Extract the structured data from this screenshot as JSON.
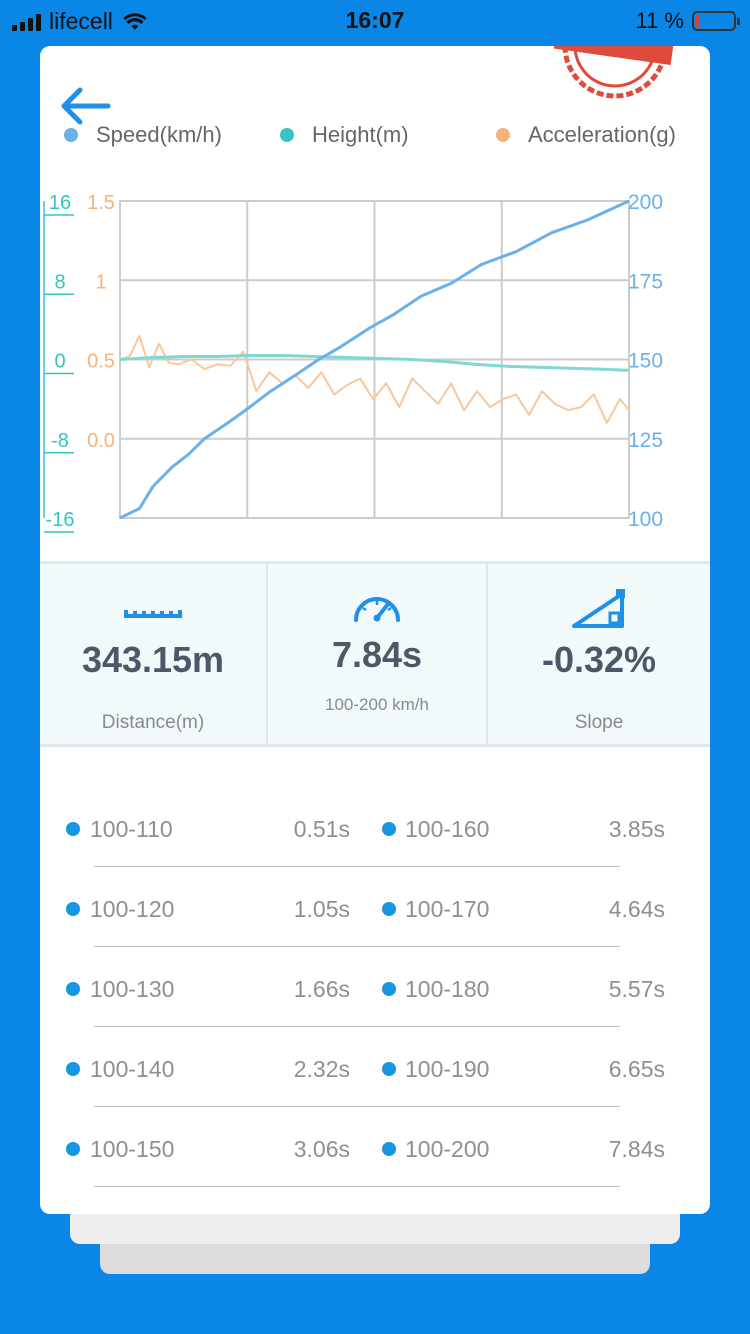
{
  "status_bar": {
    "carrier": "lifecell",
    "time": "16:07",
    "battery_text": "11 %",
    "battery_level": 0.11
  },
  "nav": {
    "back_icon": "arrow-left-icon"
  },
  "legend": [
    {
      "label": "Speed(km/h)",
      "color": "#6ab0ea"
    },
    {
      "label": "Height(m)",
      "color": "#35c5c0"
    },
    {
      "label": "Acceleration(g)",
      "color": "#f6b27c"
    }
  ],
  "chart_data": {
    "type": "line",
    "axes": {
      "height": {
        "ticks": [
          "16",
          "8",
          "0",
          "-8",
          "-16"
        ],
        "range": [
          -16,
          16
        ],
        "color": "#35c5c0"
      },
      "acceleration": {
        "ticks": [
          "1.5",
          "1",
          "0.5",
          "0.0"
        ],
        "range": [
          -0.5,
          1.5
        ],
        "color": "#f6b27c"
      },
      "speed": {
        "ticks": [
          "200",
          "175",
          "150",
          "125",
          "100"
        ],
        "range": [
          100,
          200
        ],
        "color": "#6ab0ea"
      }
    },
    "x_range": [
      0,
      7.84
    ],
    "series": [
      {
        "name": "Speed(km/h)",
        "axis": "speed",
        "x": [
          0,
          0.3,
          0.51,
          0.8,
          1.05,
          1.3,
          1.66,
          2.0,
          2.32,
          2.7,
          3.06,
          3.4,
          3.85,
          4.2,
          4.64,
          5.1,
          5.57,
          6.1,
          6.65,
          7.2,
          7.84
        ],
        "y": [
          100,
          103,
          110,
          116,
          120,
          125,
          130,
          135,
          140,
          145,
          150,
          154,
          160,
          164,
          170,
          174,
          180,
          184,
          190,
          194,
          200
        ]
      },
      {
        "name": "Height(m)",
        "axis": "height",
        "x": [
          0,
          0.5,
          1,
          1.5,
          2,
          2.5,
          3,
          3.5,
          4,
          4.5,
          5,
          5.5,
          6,
          6.5,
          7,
          7.5,
          7.84
        ],
        "y": [
          0,
          0.2,
          0.3,
          0.3,
          0.4,
          0.4,
          0.3,
          0.2,
          0.1,
          0,
          -0.2,
          -0.5,
          -0.7,
          -0.8,
          -0.9,
          -1.0,
          -1.1
        ]
      },
      {
        "name": "Acceleration(g)",
        "axis": "acceleration",
        "x": [
          0,
          0.15,
          0.3,
          0.45,
          0.6,
          0.75,
          0.9,
          1.1,
          1.3,
          1.5,
          1.7,
          1.9,
          2.1,
          2.3,
          2.5,
          2.7,
          2.9,
          3.1,
          3.3,
          3.5,
          3.7,
          3.9,
          4.1,
          4.3,
          4.5,
          4.7,
          4.9,
          5.1,
          5.3,
          5.5,
          5.7,
          5.9,
          6.1,
          6.3,
          6.5,
          6.7,
          6.9,
          7.1,
          7.3,
          7.5,
          7.7,
          7.84
        ],
        "y": [
          0.5,
          0.52,
          0.65,
          0.45,
          0.6,
          0.48,
          0.47,
          0.5,
          0.44,
          0.47,
          0.46,
          0.55,
          0.3,
          0.42,
          0.35,
          0.4,
          0.32,
          0.42,
          0.28,
          0.34,
          0.38,
          0.25,
          0.35,
          0.2,
          0.38,
          0.3,
          0.22,
          0.35,
          0.18,
          0.3,
          0.2,
          0.25,
          0.28,
          0.15,
          0.3,
          0.22,
          0.18,
          0.2,
          0.28,
          0.1,
          0.25,
          0.18
        ]
      }
    ],
    "grid": true
  },
  "stats": [
    {
      "icon": "ruler-icon",
      "value": "343.15m",
      "label": "Distance(m)"
    },
    {
      "icon": "speedometer-icon",
      "value": "7.84s",
      "label": "100-200 km/h"
    },
    {
      "icon": "slope-icon",
      "value": "-0.32%",
      "label": "Slope"
    }
  ],
  "splits": [
    {
      "range": "100-110",
      "time": "0.51s"
    },
    {
      "range": "100-120",
      "time": "1.05s"
    },
    {
      "range": "100-130",
      "time": "1.66s"
    },
    {
      "range": "100-140",
      "time": "2.32s"
    },
    {
      "range": "100-150",
      "time": "3.06s"
    },
    {
      "range": "100-160",
      "time": "3.85s"
    },
    {
      "range": "100-170",
      "time": "4.64s"
    },
    {
      "range": "100-180",
      "time": "5.57s"
    },
    {
      "range": "100-190",
      "time": "6.65s"
    },
    {
      "range": "100-200",
      "time": "7.84s"
    }
  ]
}
